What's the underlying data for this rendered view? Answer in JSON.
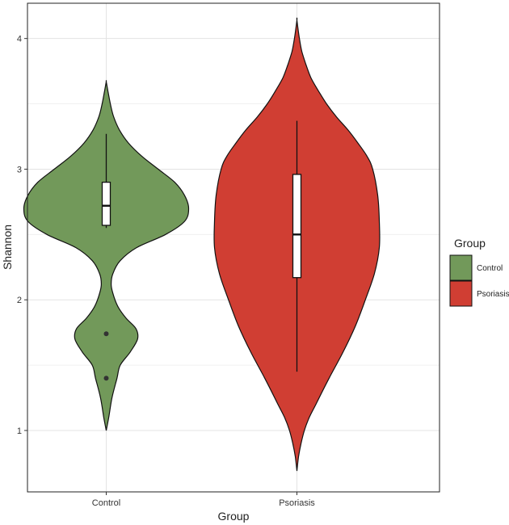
{
  "chart_data": {
    "type": "violin",
    "xlabel": "Group",
    "ylabel": "Shannon",
    "categories": [
      "Control",
      "Psoriasis"
    ],
    "y_ticks": [
      1,
      2,
      3,
      4
    ],
    "ylim": [
      0.53,
      4.27
    ],
    "grid": true,
    "legend": {
      "title": "Group",
      "placement": "right",
      "entries": [
        "Control",
        "Psoriasis"
      ]
    },
    "colors": {
      "Control": "#72995a",
      "Psoriasis": "#d03e33"
    },
    "series": [
      {
        "name": "Control",
        "min": 1.0,
        "max": 3.67,
        "box": {
          "whisker_low": 2.55,
          "q1": 2.57,
          "median": 2.72,
          "q3": 2.9,
          "whisker_high": 3.27
        },
        "outliers": [
          1.74,
          1.4
        ],
        "density": [
          [
            1.0,
            0.0
          ],
          [
            1.1,
            0.03
          ],
          [
            1.25,
            0.07
          ],
          [
            1.4,
            0.13
          ],
          [
            1.5,
            0.17
          ],
          [
            1.6,
            0.29
          ],
          [
            1.7,
            0.38
          ],
          [
            1.78,
            0.36
          ],
          [
            1.86,
            0.24
          ],
          [
            1.95,
            0.14
          ],
          [
            2.05,
            0.08
          ],
          [
            2.12,
            0.06
          ],
          [
            2.2,
            0.08
          ],
          [
            2.3,
            0.17
          ],
          [
            2.4,
            0.37
          ],
          [
            2.5,
            0.72
          ],
          [
            2.6,
            0.95
          ],
          [
            2.7,
            1.0
          ],
          [
            2.8,
            0.95
          ],
          [
            2.9,
            0.83
          ],
          [
            3.0,
            0.63
          ],
          [
            3.1,
            0.43
          ],
          [
            3.2,
            0.27
          ],
          [
            3.3,
            0.16
          ],
          [
            3.4,
            0.09
          ],
          [
            3.5,
            0.05
          ],
          [
            3.6,
            0.02
          ],
          [
            3.67,
            0.0
          ]
        ]
      },
      {
        "name": "Psoriasis",
        "min": 0.69,
        "max": 4.14,
        "box": {
          "whisker_low": 1.45,
          "q1": 2.17,
          "median": 2.5,
          "q3": 2.96,
          "whisker_high": 3.37
        },
        "outliers": [],
        "density": [
          [
            0.69,
            0.0
          ],
          [
            0.8,
            0.02
          ],
          [
            0.9,
            0.05
          ],
          [
            1.0,
            0.09
          ],
          [
            1.1,
            0.15
          ],
          [
            1.2,
            0.23
          ],
          [
            1.4,
            0.39
          ],
          [
            1.6,
            0.56
          ],
          [
            1.8,
            0.71
          ],
          [
            2.0,
            0.83
          ],
          [
            2.2,
            0.94
          ],
          [
            2.4,
            1.0
          ],
          [
            2.6,
            1.0
          ],
          [
            2.8,
            0.98
          ],
          [
            3.0,
            0.92
          ],
          [
            3.1,
            0.85
          ],
          [
            3.2,
            0.74
          ],
          [
            3.3,
            0.62
          ],
          [
            3.4,
            0.48
          ],
          [
            3.5,
            0.36
          ],
          [
            3.6,
            0.26
          ],
          [
            3.7,
            0.17
          ],
          [
            3.8,
            0.11
          ],
          [
            3.9,
            0.06
          ],
          [
            4.0,
            0.03
          ],
          [
            4.14,
            0.0
          ]
        ]
      }
    ]
  }
}
